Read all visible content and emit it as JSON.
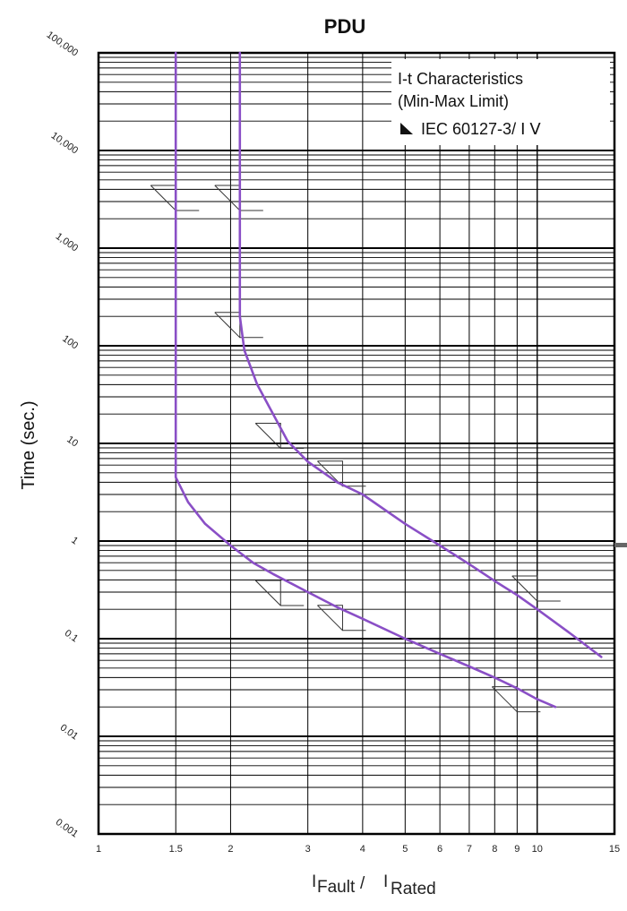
{
  "chart_data": {
    "type": "line",
    "title": "PDU",
    "ylabel": "Time (sec.)",
    "xlabel": {
      "main_left": "I",
      "sub_left": "Fault",
      "separator": "/",
      "main_right": "I",
      "sub_right": "Rated"
    },
    "x_scale": "log",
    "y_scale": "log",
    "xlim": [
      1,
      15
    ],
    "ylim": [
      0.001,
      100000
    ],
    "grid": true,
    "x_ticks": [
      {
        "value": 1,
        "label": "1"
      },
      {
        "value": 1.5,
        "label": "1.5"
      },
      {
        "value": 2,
        "label": "2"
      },
      {
        "value": 3,
        "label": "3"
      },
      {
        "value": 4,
        "label": "4"
      },
      {
        "value": 5,
        "label": "5"
      },
      {
        "value": 6,
        "label": "6"
      },
      {
        "value": 7,
        "label": "7"
      },
      {
        "value": 8,
        "label": "8"
      },
      {
        "value": 9,
        "label": "9"
      },
      {
        "value": 10,
        "label": "10"
      },
      {
        "value": 15,
        "label": "15"
      }
    ],
    "y_ticks": [
      {
        "value": 100000,
        "label": "100,000"
      },
      {
        "value": 10000,
        "label": "10,000"
      },
      {
        "value": 1000,
        "label": "1,000"
      },
      {
        "value": 100,
        "label": "100"
      },
      {
        "value": 10,
        "label": "10"
      },
      {
        "value": 1,
        "label": "1"
      },
      {
        "value": 0.1,
        "label": "0.1"
      },
      {
        "value": 0.01,
        "label": "0.01"
      },
      {
        "value": 0.001,
        "label": "0.001"
      }
    ],
    "legend": {
      "lines": [
        "I-t Characteristics",
        "(Min-Max Limit)",
        "IEC 60127-3/ Ⅰ Ⅴ"
      ],
      "placement": "top-right"
    },
    "line_color": "#8a4fc6",
    "series": [
      {
        "name": "min",
        "x": [
          1.5,
          1.5,
          1.6,
          1.75,
          2.0,
          2.25,
          2.5,
          3.0,
          3.5,
          4.0,
          5.0,
          6.0,
          7.0,
          8.0,
          9.0,
          10.0,
          11.0
        ],
        "y": [
          100000,
          4.5,
          2.5,
          1.5,
          0.9,
          0.6,
          0.46,
          0.3,
          0.21,
          0.16,
          0.1,
          0.07,
          0.052,
          0.04,
          0.031,
          0.024,
          0.02
        ]
      },
      {
        "name": "max",
        "x": [
          2.1,
          2.1,
          2.15,
          2.3,
          2.5,
          2.7,
          3.0,
          3.5,
          4.0,
          5.0,
          6.0,
          7.0,
          8.0,
          9.0,
          10.0,
          12.0,
          14.0
        ],
        "y": [
          100000,
          200,
          90,
          40,
          20,
          10.5,
          6.5,
          4.0,
          3.0,
          1.5,
          0.9,
          0.58,
          0.39,
          0.28,
          0.2,
          0.11,
          0.065
        ]
      }
    ],
    "limit_markers": [
      {
        "x": 1.5,
        "y": 3000
      },
      {
        "x": 2.1,
        "y": 3000
      },
      {
        "x": 2.1,
        "y": 150
      },
      {
        "x": 2.6,
        "y": 11
      },
      {
        "x": 3.6,
        "y": 4.5
      },
      {
        "x": 10.0,
        "y": 0.3
      },
      {
        "x": 2.6,
        "y": 0.27
      },
      {
        "x": 3.6,
        "y": 0.15
      },
      {
        "x": 9.0,
        "y": 0.022
      }
    ]
  }
}
